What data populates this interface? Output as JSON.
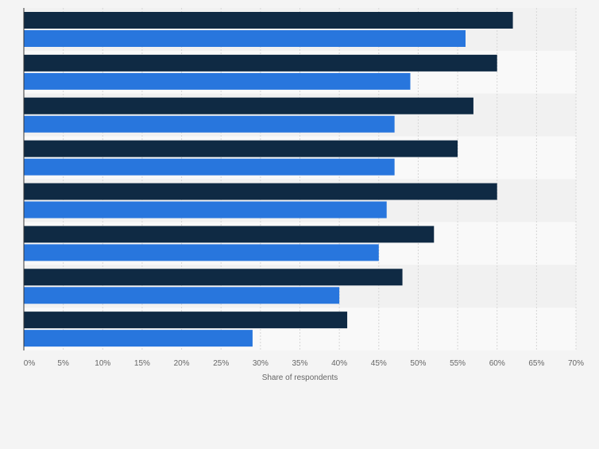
{
  "chart_data": {
    "type": "bar",
    "orientation": "horizontal",
    "categories": [
      "",
      "",
      "",
      "",
      "",
      "",
      "",
      ""
    ],
    "series": [
      {
        "color": "#0f2a44",
        "values": [
          62,
          60,
          57,
          55,
          60,
          52,
          48,
          41
        ]
      },
      {
        "color": "#2876dd",
        "values": [
          56,
          49,
          47,
          47,
          46,
          45,
          40,
          29
        ]
      }
    ],
    "xlabel": "Share of respondents",
    "xlim": [
      0,
      70
    ],
    "x_ticks": [
      0,
      5,
      10,
      15,
      20,
      25,
      30,
      35,
      40,
      45,
      50,
      55,
      60,
      65,
      70
    ],
    "tick_suffix": "%",
    "grid": true,
    "band_colors": [
      "#f1f1f1",
      "#f9f9f9"
    ]
  }
}
